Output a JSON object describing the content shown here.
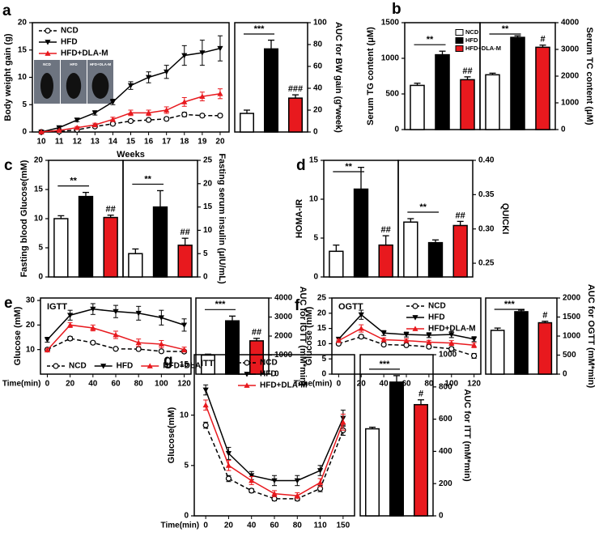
{
  "chart_data": [
    {
      "type": "line",
      "panel": "a",
      "ylabel": "Body weight gain (g)",
      "xlabel": "Weeks",
      "x": [
        10,
        11,
        12,
        13,
        14,
        15,
        16,
        17,
        18,
        19,
        20
      ],
      "xlim": [
        9.5,
        20.5
      ],
      "xticks": [
        10,
        11,
        12,
        13,
        14,
        15,
        16,
        17,
        18,
        19,
        20
      ],
      "ylim": [
        0,
        20
      ],
      "yticks": [
        0,
        5,
        10,
        15,
        20
      ],
      "legend": "upper left",
      "inset_labels": [
        "NCD",
        "HFD",
        "HFD+DLA-M"
      ],
      "series": [
        {
          "name": "NCD",
          "color": "#000000",
          "dash": true,
          "marker": "circle-open",
          "values": [
            0,
            0.1,
            0.4,
            1.0,
            1.5,
            2.0,
            2.2,
            2.4,
            3.2,
            3.0,
            3.0
          ],
          "errors": [
            0.1,
            0.1,
            0.2,
            0.2,
            0.3,
            0.3,
            0.3,
            0.3,
            0.4,
            0.3,
            0.3
          ]
        },
        {
          "name": "HFD",
          "color": "#000000",
          "dash": false,
          "marker": "triangle-down",
          "values": [
            0,
            0.8,
            2.2,
            3.5,
            5.5,
            8.5,
            10,
            11,
            14,
            14.5,
            15.3
          ],
          "errors": [
            0.1,
            0.2,
            0.3,
            0.4,
            0.5,
            0.7,
            1.0,
            1.2,
            1.8,
            2.3,
            2.3
          ]
        },
        {
          "name": "HFD+DLA-M",
          "color": "#e8191e",
          "dash": false,
          "marker": "triangle-up",
          "values": [
            0,
            0.3,
            0.8,
            1.3,
            2.3,
            3.5,
            3.5,
            4.0,
            5.5,
            6.5,
            7.0
          ],
          "errors": [
            0.1,
            0.1,
            0.2,
            0.3,
            0.4,
            0.5,
            0.5,
            0.6,
            0.8,
            0.8,
            0.9
          ]
        }
      ]
    },
    {
      "type": "bar",
      "ylabel": "AUC for BW gain (g*week)",
      "values": [
        17,
        76,
        31
      ],
      "errors": [
        3,
        8,
        3
      ],
      "colors": [
        "#ffffff",
        "#000000",
        "#e8191e"
      ],
      "ylim": [
        0,
        100
      ],
      "yticks": [
        0,
        20,
        40,
        60,
        80,
        100
      ],
      "bracket_label": "***",
      "bar_marks": [
        null,
        null,
        "###"
      ]
    },
    {
      "type": "bar",
      "panel": "b",
      "ylabel": "Serum TG content (μM)",
      "values": [
        620,
        1050,
        700
      ],
      "errors": [
        30,
        50,
        40
      ],
      "colors": [
        "#ffffff",
        "#000000",
        "#e8191e"
      ],
      "ylim": [
        0,
        1500
      ],
      "yticks": [
        0,
        500,
        1000,
        1500
      ],
      "bracket_label": "**",
      "bar_marks": [
        null,
        null,
        "##"
      ],
      "legend_labels": [
        "NCD",
        "HFD",
        "HFD+DLA-M"
      ]
    },
    {
      "type": "bar",
      "ylabel": "Serum TC content (μM)",
      "values": [
        2050,
        3450,
        3080
      ],
      "errors": [
        60,
        60,
        80
      ],
      "colors": [
        "#ffffff",
        "#000000",
        "#e8191e"
      ],
      "ylim": [
        0,
        4000
      ],
      "yticks": [
        0,
        1000,
        2000,
        3000,
        4000
      ],
      "bracket_label": "**",
      "bar_marks": [
        null,
        null,
        "#"
      ]
    },
    {
      "type": "bar",
      "panel": "c",
      "ylabel": "Fasting blood Glucose(mM)",
      "values": [
        10,
        13.8,
        10.2
      ],
      "errors": [
        0.5,
        0.7,
        0.4
      ],
      "colors": [
        "#ffffff",
        "#000000",
        "#e8191e"
      ],
      "ylim": [
        0,
        20
      ],
      "yticks": [
        0,
        5,
        10,
        15,
        20
      ],
      "bracket_label": "**",
      "bar_marks": [
        null,
        null,
        "##"
      ]
    },
    {
      "type": "bar",
      "ylabel": "Fasting serum insulin (μIU/mL)",
      "values": [
        5,
        15,
        6.8
      ],
      "errors": [
        1,
        3.5,
        1.5
      ],
      "colors": [
        "#ffffff",
        "#000000",
        "#e8191e"
      ],
      "ylim": [
        0,
        25
      ],
      "yticks": [
        0,
        5,
        10,
        15,
        20,
        25
      ],
      "bracket_label": "**",
      "bar_marks": [
        null,
        null,
        "##"
      ]
    },
    {
      "type": "bar",
      "panel": "d",
      "ylabel": "HOMA-IR",
      "values": [
        3.3,
        11.3,
        4.1
      ],
      "errors": [
        0.8,
        2.8,
        1.2
      ],
      "colors": [
        "#ffffff",
        "#000000",
        "#e8191e"
      ],
      "ylim": [
        0,
        15
      ],
      "yticks": [
        0,
        5,
        10,
        15
      ],
      "bracket_label": "**",
      "bar_marks": [
        null,
        null,
        "##"
      ]
    },
    {
      "type": "bar",
      "ylabel": "QUICKI",
      "values": [
        0.31,
        0.28,
        0.305
      ],
      "errors": [
        0.005,
        0.004,
        0.006
      ],
      "colors": [
        "#ffffff",
        "#000000",
        "#e8191e"
      ],
      "ylim": [
        0.23,
        0.4
      ],
      "yticks": [
        0.25,
        {
          "value": 0.3,
          "label": "0.30"
        },
        0.35,
        {
          "value": 0.4,
          "label": "0.40"
        }
      ],
      "bracket_label": "**",
      "bar_marks": [
        null,
        null,
        "##"
      ]
    },
    {
      "type": "line",
      "panel": "e",
      "plot_label": "IGTT",
      "ylabel": "Glucose (mM)",
      "xlabel": "Time(min)",
      "x": [
        0,
        20,
        40,
        60,
        80,
        100,
        120
      ],
      "xlim": [
        -6,
        126
      ],
      "xticks": [
        0,
        20,
        40,
        60,
        80,
        100,
        120
      ],
      "ylim": [
        0,
        31
      ],
      "yticks": [
        10,
        20,
        30
      ],
      "legend": "lower center",
      "series": [
        {
          "name": "NCD",
          "color": "#000000",
          "dash": true,
          "marker": "circle-open",
          "values": [
            10,
            14.5,
            12.8,
            10.3,
            10.2,
            9.3,
            9.2
          ],
          "errors": [
            0.5,
            0.8,
            0.6,
            0.5,
            0.5,
            0.5,
            0.5
          ]
        },
        {
          "name": "HFD",
          "color": "#000000",
          "dash": false,
          "marker": "triangle-down",
          "values": [
            14,
            24,
            26.5,
            25.5,
            24.8,
            23,
            20
          ],
          "errors": [
            1,
            2,
            2.2,
            2.5,
            2.8,
            3,
            2.5
          ]
        },
        {
          "name": "HFD+DLA-M",
          "color": "#e8191e",
          "dash": false,
          "marker": "triangle-up",
          "values": [
            9.8,
            20,
            18.8,
            16,
            12.8,
            12.2,
            10
          ],
          "errors": [
            0.5,
            1,
            1.2,
            1.5,
            1.5,
            1.5,
            1
          ]
        }
      ]
    },
    {
      "type": "bar",
      "ylabel": "AUC for IGTT (mM*min)",
      "values": [
        1000,
        2800,
        1750
      ],
      "errors": [
        50,
        250,
        130
      ],
      "colors": [
        "#ffffff",
        "#000000",
        "#e8191e"
      ],
      "ylim": [
        0,
        4000
      ],
      "yticks": [
        0,
        1000,
        2000,
        3000,
        4000
      ],
      "bracket_label": "***",
      "bar_marks": [
        null,
        null,
        "##"
      ]
    },
    {
      "type": "line",
      "panel": "f",
      "plot_label": "OGTT",
      "ylabel": "Glucose (mM)",
      "xlabel": "Time(min)",
      "x": [
        0,
        20,
        40,
        60,
        80,
        100,
        120
      ],
      "xlim": [
        -6,
        126
      ],
      "xticks": [
        0,
        20,
        40,
        60,
        80,
        100,
        120
      ],
      "ylim": [
        0,
        25
      ],
      "yticks": [
        0,
        5,
        10,
        15,
        20,
        25
      ],
      "legend": "upper right",
      "series": [
        {
          "name": "NCD",
          "color": "#000000",
          "dash": true,
          "marker": "circle-open",
          "values": [
            10,
            12.3,
            9.7,
            9.5,
            9,
            8.3,
            6
          ],
          "errors": [
            0.4,
            0.6,
            0.4,
            0.4,
            0.5,
            0.6,
            0.8
          ]
        },
        {
          "name": "HFD",
          "color": "#000000",
          "dash": false,
          "marker": "triangle-down",
          "values": [
            11.5,
            19.5,
            13.5,
            13,
            12.8,
            13,
            11.5
          ],
          "errors": [
            0.6,
            1.5,
            0.8,
            0.8,
            0.8,
            1,
            0.8
          ]
        },
        {
          "name": "HFD+DLA-M",
          "color": "#e8191e",
          "dash": false,
          "marker": "triangle-up",
          "values": [
            11,
            15,
            11.3,
            11,
            10.5,
            10.2,
            9.5
          ],
          "errors": [
            0.5,
            1.2,
            0.6,
            0.6,
            0.6,
            0.8,
            0.8
          ]
        }
      ]
    },
    {
      "type": "bar",
      "ylabel": "AUC for OGTT (mM*min)",
      "values": [
        1150,
        1640,
        1350
      ],
      "errors": [
        60,
        40,
        40
      ],
      "colors": [
        "#ffffff",
        "#000000",
        "#e8191e"
      ],
      "ylim": [
        0,
        2000
      ],
      "yticks": [
        0,
        500,
        1000,
        1500,
        2000
      ],
      "bracket_label": "***",
      "bar_marks": [
        null,
        null,
        "#"
      ]
    },
    {
      "type": "line",
      "panel": "g",
      "plot_label": "ITT",
      "ylabel": "Glucose(mM)",
      "xlabel": "Time(min)",
      "categories": [
        "0",
        "20",
        "40",
        "60",
        "80",
        "110",
        "150"
      ],
      "ylim": [
        0,
        16
      ],
      "yticks": [
        0,
        5,
        10,
        15
      ],
      "legend": "upper center",
      "series": [
        {
          "name": "NCD",
          "color": "#000000",
          "dash": true,
          "marker": "circle-open",
          "values": [
            9,
            3.7,
            2.5,
            1.7,
            1.7,
            2.7,
            8.5
          ],
          "errors": [
            0.3,
            0.3,
            0.2,
            0.2,
            0.2,
            0.3,
            0.5
          ]
        },
        {
          "name": "HFD",
          "color": "#000000",
          "dash": false,
          "marker": "triangle-down",
          "values": [
            12.5,
            6.2,
            4,
            3.5,
            3.5,
            4.5,
            9.7
          ],
          "errors": [
            0.5,
            0.6,
            0.4,
            0.5,
            0.5,
            0.5,
            0.8
          ]
        },
        {
          "name": "HFD+DLA-M",
          "color": "#e8191e",
          "dash": false,
          "marker": "triangle-up",
          "values": [
            11,
            5,
            3.5,
            2.2,
            2,
            3.3,
            9.3
          ],
          "errors": [
            0.5,
            0.5,
            0.4,
            0.3,
            0.3,
            0.4,
            0.8
          ]
        }
      ]
    },
    {
      "type": "bar",
      "ylabel": "AUC for ITT (mM*min)",
      "values": [
        540,
        830,
        690
      ],
      "errors": [
        10,
        40,
        30
      ],
      "colors": [
        "#ffffff",
        "#000000",
        "#e8191e"
      ],
      "ylim": [
        0,
        1000
      ],
      "yticks": [
        0,
        200,
        400,
        600,
        800,
        1000
      ],
      "bracket_label": "***",
      "bar_marks": [
        null,
        null,
        "#"
      ]
    }
  ]
}
